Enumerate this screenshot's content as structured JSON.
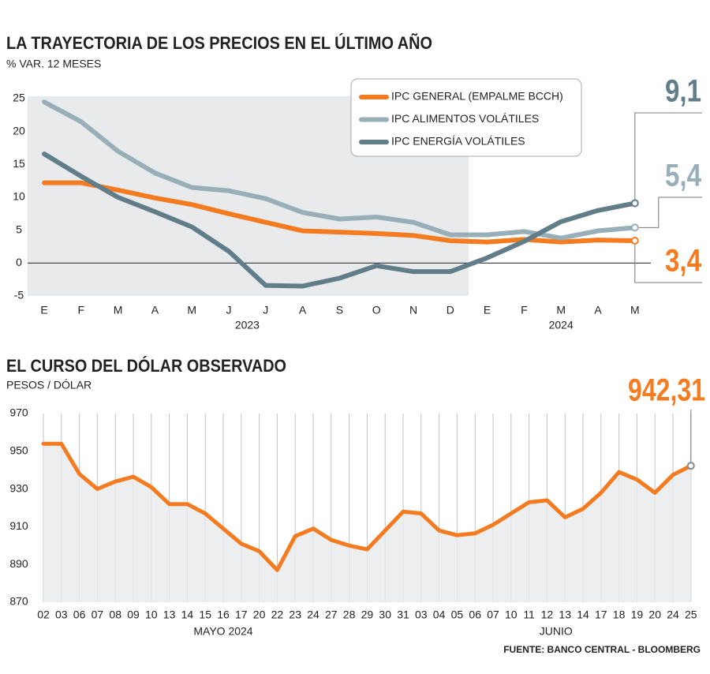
{
  "chart_data": [
    {
      "type": "line",
      "title": "LA TRAYECTORIA DE LOS PRECIOS EN EL ÚLTIMO AÑO",
      "subtitle": "% VAR. 12 MESES",
      "categories": [
        "E",
        "F",
        "M",
        "A",
        "M",
        "J",
        "J",
        "A",
        "S",
        "O",
        "N",
        "D",
        "E",
        "F",
        "M",
        "A",
        "M"
      ],
      "x_groups": [
        {
          "label": "2023",
          "count": 12
        },
        {
          "label": "2024",
          "count": 5
        }
      ],
      "series": [
        {
          "name": "IPC GENERAL (EMPALME BCCH)",
          "color": "#f47b20",
          "values": [
            12.2,
            12.2,
            11.1,
            9.9,
            8.9,
            7.5,
            6.2,
            4.9,
            4.7,
            4.5,
            4.2,
            3.4,
            3.2,
            3.6,
            3.2,
            3.5,
            3.4
          ],
          "value_labels": [
            null,
            null,
            null,
            null,
            null,
            null,
            null,
            null,
            null,
            null,
            null,
            null,
            null,
            null,
            null,
            null,
            "3,4"
          ]
        },
        {
          "name": "IPC ALIMENTOS VOLÁTILES",
          "color": "#98afb8",
          "values": [
            24.5,
            21.5,
            17.0,
            13.7,
            11.5,
            11.0,
            9.8,
            7.7,
            6.7,
            7.0,
            6.2,
            4.3,
            4.3,
            4.8,
            3.8,
            4.9,
            5.4
          ],
          "value_labels": [
            null,
            null,
            null,
            null,
            null,
            null,
            null,
            null,
            null,
            null,
            null,
            null,
            null,
            null,
            null,
            null,
            "5,4"
          ]
        },
        {
          "name": "IPC ENERGÍA VOLÁTILES",
          "color": "#617d8a",
          "values": [
            16.6,
            13.2,
            10.0,
            7.8,
            5.5,
            1.8,
            -3.4,
            -3.5,
            -2.3,
            -0.4,
            -1.3,
            -1.3,
            0.8,
            3.3,
            6.3,
            8.0,
            9.1
          ],
          "value_labels": [
            null,
            null,
            null,
            null,
            null,
            null,
            null,
            null,
            null,
            null,
            null,
            null,
            null,
            null,
            null,
            null,
            "9,1"
          ]
        }
      ],
      "ylim": [
        -5,
        25
      ],
      "yticks": [
        -5,
        0,
        5,
        10,
        15,
        20,
        25
      ],
      "legend": "top-right"
    },
    {
      "type": "area",
      "title": "EL CURSO DEL DÓLAR OBSERVADO",
      "subtitle": "PESOS / DÓLAR",
      "categories": [
        "02",
        "03",
        "06",
        "07",
        "08",
        "09",
        "10",
        "13",
        "14",
        "15",
        "16",
        "17",
        "20",
        "22",
        "23",
        "24",
        "27",
        "28",
        "29",
        "30",
        "31",
        "03",
        "04",
        "05",
        "06",
        "07",
        "10",
        "11",
        "12",
        "13",
        "14",
        "17",
        "18",
        "19",
        "20",
        "24",
        "25"
      ],
      "x_groups": [
        {
          "label": "MAYO 2024",
          "count": 21
        },
        {
          "label": "JUNIO",
          "count": 16
        }
      ],
      "series": [
        {
          "name": null,
          "color": "#f47b20",
          "fill": "#e9eaeb",
          "values": [
            954,
            954,
            938,
            930,
            934,
            936.5,
            931,
            922,
            922,
            917,
            909,
            901,
            897,
            887,
            905,
            909,
            903,
            900,
            898,
            908,
            918,
            917,
            908,
            905.5,
            906.5,
            911,
            917,
            923,
            924,
            915,
            919.5,
            928,
            939,
            935,
            928,
            937.5,
            942.31
          ],
          "value_labels": [
            null,
            null,
            null,
            null,
            null,
            null,
            null,
            null,
            null,
            null,
            null,
            null,
            null,
            null,
            null,
            null,
            null,
            null,
            null,
            null,
            null,
            null,
            null,
            null,
            null,
            null,
            null,
            null,
            null,
            null,
            null,
            null,
            null,
            null,
            null,
            null,
            "942,31"
          ]
        }
      ],
      "ylim": [
        870,
        970
      ],
      "yticks": [
        870,
        890,
        910,
        930,
        950,
        970
      ],
      "grid": "vertical",
      "source": "FUENTE: BANCO CENTRAL - BLOOMBERG"
    }
  ]
}
